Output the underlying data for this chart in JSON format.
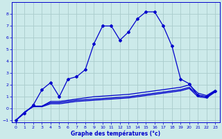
{
  "title": "Graphe des températures (°c)",
  "background_color": "#cceaea",
  "grid_color": "#aacccc",
  "line_color": "#0000cc",
  "xlim": [
    -0.5,
    23.5
  ],
  "ylim": [
    -1.2,
    9.0
  ],
  "xticks": [
    0,
    1,
    2,
    3,
    4,
    5,
    6,
    7,
    8,
    9,
    10,
    11,
    12,
    13,
    14,
    15,
    16,
    17,
    18,
    19,
    20,
    21,
    22,
    23
  ],
  "yticks": [
    -1,
    0,
    1,
    2,
    3,
    4,
    5,
    6,
    7,
    8
  ],
  "main_x": [
    0,
    1,
    2,
    3,
    4,
    5,
    6,
    7,
    8,
    9,
    10,
    11,
    12,
    13,
    14,
    15,
    16,
    17,
    18,
    19,
    20,
    21,
    22,
    23
  ],
  "main_y": [
    -1,
    -0.4,
    0.3,
    1.6,
    2.2,
    1.0,
    2.5,
    2.7,
    3.3,
    5.5,
    7.0,
    7.0,
    5.8,
    6.5,
    7.6,
    8.2,
    8.2,
    7.0,
    5.3,
    2.5,
    2.1,
    1.1,
    1.0,
    1.5
  ],
  "line2_x": [
    0,
    1,
    2,
    3,
    4,
    5,
    6,
    7,
    8,
    9,
    10,
    11,
    12,
    13,
    14,
    15,
    16,
    17,
    18,
    19,
    20,
    21,
    22,
    23
  ],
  "line2_y": [
    -1,
    -0.3,
    0.2,
    0.2,
    0.6,
    0.6,
    0.7,
    0.8,
    0.9,
    1.0,
    1.05,
    1.1,
    1.15,
    1.2,
    1.3,
    1.4,
    1.5,
    1.6,
    1.7,
    1.8,
    2.0,
    1.3,
    1.1,
    1.55
  ],
  "line3_x": [
    0,
    1,
    2,
    3,
    4,
    5,
    6,
    7,
    8,
    9,
    10,
    11,
    12,
    13,
    14,
    15,
    16,
    17,
    18,
    19,
    20,
    21,
    22,
    23
  ],
  "line3_y": [
    -1,
    -0.3,
    0.2,
    0.2,
    0.5,
    0.5,
    0.6,
    0.7,
    0.75,
    0.8,
    0.85,
    0.9,
    0.95,
    1.0,
    1.1,
    1.2,
    1.3,
    1.4,
    1.5,
    1.6,
    1.8,
    1.15,
    1.0,
    1.45
  ],
  "line4_x": [
    0,
    1,
    2,
    3,
    4,
    5,
    6,
    7,
    8,
    9,
    10,
    11,
    12,
    13,
    14,
    15,
    16,
    17,
    18,
    19,
    20,
    21,
    22,
    23
  ],
  "line4_y": [
    -1,
    -0.3,
    0.15,
    0.15,
    0.4,
    0.4,
    0.5,
    0.6,
    0.65,
    0.7,
    0.75,
    0.8,
    0.85,
    0.9,
    1.0,
    1.1,
    1.2,
    1.3,
    1.4,
    1.5,
    1.7,
    1.0,
    0.9,
    1.4
  ]
}
